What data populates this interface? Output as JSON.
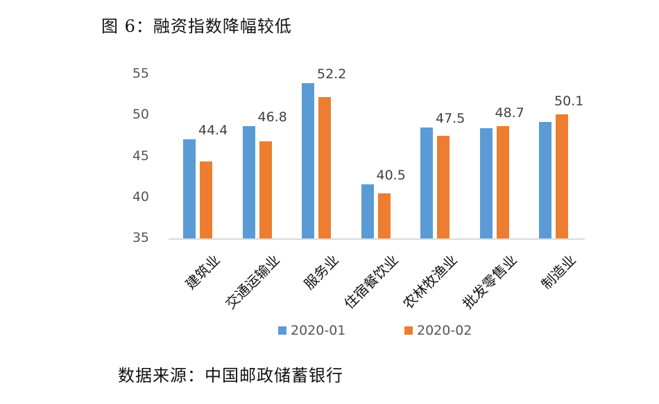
{
  "title": "图 6：融资指数降幅较低",
  "source": "数据来源：中国邮政储蓄银行",
  "colors": {
    "series1": "#5b9bd5",
    "series2": "#ed7d31"
  },
  "chart_data": {
    "type": "bar",
    "title": "图 6：融资指数降幅较低",
    "xlabel": "",
    "ylabel": "",
    "ylim": [
      35,
      55
    ],
    "yticks": [
      35,
      40,
      45,
      50,
      55
    ],
    "grid": false,
    "legend_position": "bottom",
    "categories": [
      "建筑业",
      "交通运输业",
      "服务业",
      "住宿餐饮业",
      "农林牧渔业",
      "批发零售业",
      "制造业"
    ],
    "series": [
      {
        "name": "2020-01",
        "color": "#5b9bd5",
        "values": [
          47.1,
          48.7,
          53.9,
          41.6,
          48.5,
          48.4,
          49.2
        ]
      },
      {
        "name": "2020-02",
        "color": "#ed7d31",
        "values": [
          44.4,
          46.8,
          52.2,
          40.5,
          47.5,
          48.7,
          50.1
        ]
      }
    ],
    "data_labels": [
      "44.4",
      "46.8",
      "52.2",
      "40.5",
      "47.5",
      "48.7",
      "50.1"
    ]
  },
  "legend": [
    {
      "label": "2020-01"
    },
    {
      "label": "2020-02"
    }
  ],
  "source_note": "数据来源：中国邮政储蓄银行"
}
